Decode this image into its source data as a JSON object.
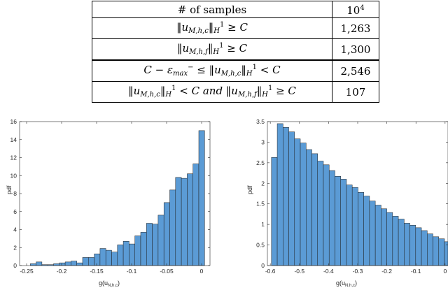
{
  "table": {
    "rows": [
      {
        "label": "# of samples",
        "value": "10",
        "value_exp": "4"
      },
      {
        "label": "‖u",
        "sub": "M,h,c",
        "mid": "‖",
        "sub2": "H",
        "sup2": "1",
        "tail": " ≥ C",
        "value": "1,263"
      },
      {
        "label": "‖u",
        "sub": "M,h,f",
        "mid": "‖",
        "sub2": "H",
        "sup2": "1",
        "tail": " ≥ C",
        "value": "1,300"
      },
      {
        "label": "C − ε",
        "label_sub": "max",
        "label_sup": "−",
        "rest": " ≤ ‖u",
        "sub": "M,h,c",
        "mid": "‖",
        "sub2": "H",
        "sup2": "1",
        "tail": " < C",
        "value": "2,546"
      },
      {
        "label": "‖u",
        "sub": "M,h,c",
        "mid": "‖",
        "sub2": "H",
        "sup2": "1",
        "tail": " < C and ‖u",
        "sub3": "M,h,f",
        "mid3": "‖",
        "sub4": "H",
        "sup4": "1",
        "tail2": " ≥ C",
        "value": "107"
      }
    ]
  },
  "chart_data": [
    {
      "type": "bar",
      "ylabel": "pdf",
      "xlabel_main": "g(u",
      "xlabel_sub": "N,h,c",
      "xlabel_end": ")",
      "xlim": [
        -0.26,
        0.012
      ],
      "ylim": [
        0,
        16
      ],
      "x_ticks": [
        -0.25,
        -0.2,
        -0.15,
        -0.1,
        -0.05,
        0
      ],
      "x_tick_labels": [
        "-0.25",
        "-0.2",
        "-0.15",
        "-0.1",
        "-0.05",
        "0"
      ],
      "y_ticks": [
        0,
        2,
        4,
        6,
        8,
        10,
        12,
        14,
        16
      ],
      "y_tick_labels": [
        "0",
        "2",
        "4",
        "6",
        "8",
        "10",
        "12",
        "14",
        "16"
      ],
      "bin_edges": [
        -0.2447,
        -0.2364,
        -0.2281,
        -0.2198,
        -0.2115,
        -0.2032,
        -0.1949,
        -0.1866,
        -0.1783,
        -0.17,
        -0.1617,
        -0.1534,
        -0.1451,
        -0.1368,
        -0.1285,
        -0.1202,
        -0.1119,
        -0.1036,
        -0.0953,
        -0.087,
        -0.0787,
        -0.0704,
        -0.0621,
        -0.0538,
        -0.0455,
        -0.0372,
        -0.0289,
        -0.0206,
        -0.0123,
        -0.004,
        0.0043
      ],
      "values": [
        0.2,
        0.4,
        0.1,
        0.1,
        0.2,
        0.3,
        0.4,
        0.5,
        0.3,
        0.9,
        0.9,
        1.3,
        1.9,
        1.7,
        1.5,
        2.3,
        2.7,
        2.4,
        3.3,
        3.7,
        4.7,
        4.6,
        5.6,
        7.0,
        8.4,
        9.8,
        9.7,
        10.2,
        11.3,
        15.0
      ]
    },
    {
      "type": "bar",
      "ylabel": "pdf",
      "xlabel_main": "g(u",
      "xlabel_sub": "N,h,c",
      "xlabel_end": ")",
      "xlim": [
        -0.61,
        0.01
      ],
      "ylim": [
        0,
        3.5
      ],
      "x_ticks": [
        -0.6,
        -0.5,
        -0.4,
        -0.3,
        -0.2,
        -0.1,
        0
      ],
      "x_tick_labels": [
        "-0.6",
        "-0.5",
        "-0.4",
        "-0.3",
        "-0.2",
        "-0.1",
        "0"
      ],
      "y_ticks": [
        0,
        0.5,
        1,
        1.5,
        2,
        2.5,
        3,
        3.5
      ],
      "y_tick_labels": [
        "0",
        "0.5",
        "1",
        "1.5",
        "2",
        "2.5",
        "3",
        "3.5"
      ],
      "bin_edges": [
        -0.596,
        -0.5762,
        -0.5564,
        -0.5366,
        -0.5168,
        -0.497,
        -0.4772,
        -0.4574,
        -0.4376,
        -0.4178,
        -0.398,
        -0.3782,
        -0.3584,
        -0.3386,
        -0.3188,
        -0.299,
        -0.2792,
        -0.2594,
        -0.2396,
        -0.2198,
        -0.2,
        -0.1802,
        -0.1604,
        -0.1406,
        -0.1208,
        -0.101,
        -0.0812,
        -0.0614,
        -0.0416,
        -0.0218,
        -0.002,
        0.0178
      ],
      "values": [
        2.63,
        3.45,
        3.36,
        3.25,
        3.08,
        2.98,
        2.82,
        2.72,
        2.54,
        2.45,
        2.31,
        2.17,
        2.1,
        1.96,
        1.9,
        1.78,
        1.69,
        1.57,
        1.47,
        1.38,
        1.29,
        1.2,
        1.13,
        1.03,
        0.98,
        0.92,
        0.85,
        0.77,
        0.7,
        0.65,
        0.58
      ]
    }
  ]
}
